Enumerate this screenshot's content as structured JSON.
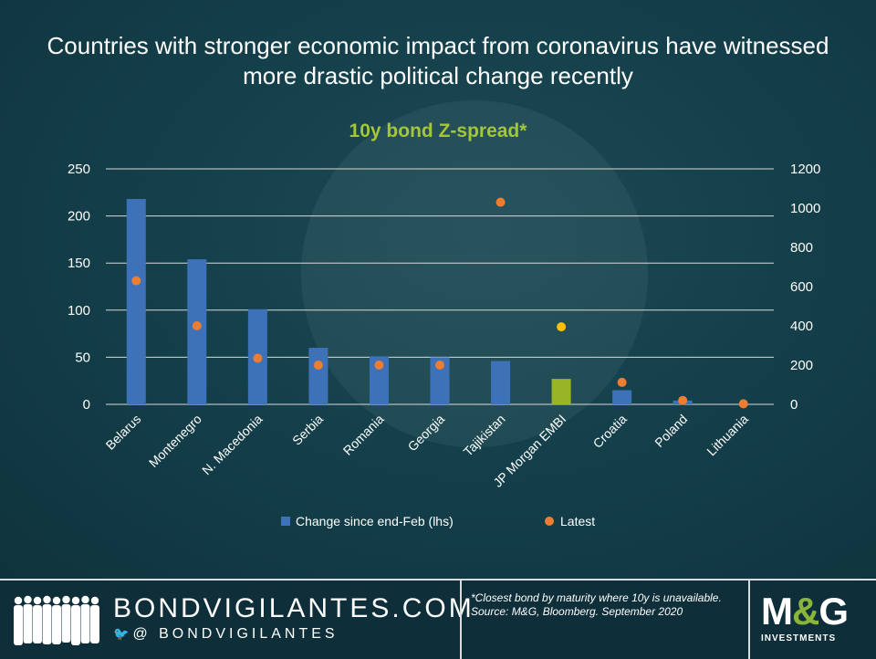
{
  "title": "Countries with stronger economic impact from coronavirus have witnessed more drastic political change recently",
  "colors": {
    "background": "#14404b",
    "bar": "#3e72b8",
    "bar_highlight": "#9ab428",
    "dot": "#ed7d31",
    "dot_highlight": "#ffc000",
    "subtitle": "#a4c639",
    "gridline": "#d9d9d9"
  },
  "chart_data": {
    "type": "bar",
    "title": "10y bond Z-spread*",
    "categories": [
      "Belarus",
      "Montenegro",
      "N. Macedonia",
      "Serbia",
      "Romania",
      "Georgia",
      "Tajikistan",
      "JP Morgan EMBI",
      "Croatia",
      "Poland",
      "Lithuania"
    ],
    "highlight_category": "JP Morgan EMBI",
    "series": [
      {
        "name": "Change since end-Feb (lhs)",
        "type": "bar",
        "axis": "left",
        "values": [
          218,
          154,
          101,
          60,
          51,
          50,
          46,
          27,
          15,
          4,
          0
        ]
      },
      {
        "name": "Latest",
        "type": "scatter",
        "axis": "right",
        "values": [
          630,
          400,
          235,
          200,
          200,
          200,
          1030,
          395,
          112,
          20,
          3
        ]
      }
    ],
    "left_axis": {
      "min": 0,
      "max": 250,
      "ticks": [
        0,
        50,
        100,
        150,
        200,
        250
      ]
    },
    "right_axis": {
      "min": 0,
      "max": 1200,
      "ticks": [
        0,
        200,
        400,
        600,
        800,
        1000,
        1200
      ]
    },
    "grid": true,
    "legend_position": "bottom"
  },
  "footer": {
    "brand": "BONDVIGILANTES.COM",
    "handle": "@ BONDVIGILANTES",
    "twitter_icon": "twitter-bird-icon",
    "footnote": "*Closest bond by maturity where 10y is unavailable. Source: M&G, Bloomberg. September 2020",
    "logo": {
      "left": "M",
      "amp": "&",
      "right": "G",
      "sub": "INVESTMENTS"
    }
  }
}
